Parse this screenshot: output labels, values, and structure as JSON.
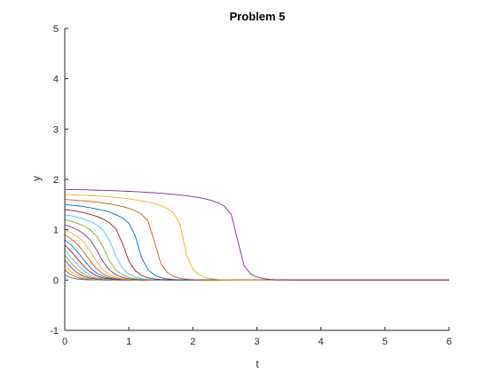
{
  "chart_data": {
    "type": "line",
    "title": "Problem 5",
    "xlabel": "t",
    "ylabel": "y",
    "xlim": [
      0,
      6
    ],
    "ylim": [
      -1,
      5
    ],
    "xticks": [
      "0",
      "1",
      "2",
      "3",
      "4",
      "5",
      "6"
    ],
    "yticks": [
      "-1",
      "0",
      "1",
      "2",
      "3",
      "4",
      "5"
    ],
    "grid": false,
    "legend": "none",
    "t": [
      0,
      0.1,
      0.2,
      0.3,
      0.4,
      0.5,
      0.6,
      0.7,
      0.8,
      0.9,
      1,
      1.1,
      1.2,
      1.3,
      1.4,
      1.5,
      1.6,
      1.7,
      1.8,
      1.9,
      2,
      2.1,
      2.2,
      2.3,
      2.4,
      2.5,
      2.6,
      2.7,
      2.8,
      2.9,
      3,
      3.1,
      3.2,
      3.3,
      3.4,
      3.5,
      3.6,
      3.7,
      3.8,
      3.9,
      4,
      4.1,
      4.2,
      4.3,
      4.4,
      4.5,
      4.6,
      4.7,
      4.8,
      4.9,
      5,
      5.1,
      5.2,
      5.3,
      5.4,
      5.5,
      5.6,
      5.7,
      5.8,
      5.9,
      6
    ],
    "series": [
      {
        "color": "#0072BD",
        "values": [
          0.1,
          0.046,
          0.021,
          0.009,
          0.004,
          0.002,
          0.001,
          0,
          0,
          0,
          0,
          0,
          0,
          0,
          0,
          0,
          0,
          0,
          0,
          0,
          0,
          0,
          0,
          0,
          0,
          0,
          0,
          0,
          0,
          0,
          0,
          0,
          0,
          0,
          0,
          0,
          0,
          0,
          0,
          0,
          0,
          0,
          0,
          0,
          0,
          0,
          0,
          0,
          0,
          0,
          0,
          0,
          0,
          0,
          0,
          0,
          0,
          0,
          0,
          0,
          0
        ]
      },
      {
        "color": "#D95319",
        "values": [
          0.2,
          0.102,
          0.05,
          0.024,
          0.012,
          0.006,
          0.003,
          0.001,
          0.001,
          0,
          0,
          0,
          0,
          0,
          0,
          0,
          0,
          0,
          0,
          0,
          0,
          0,
          0,
          0,
          0,
          0,
          0,
          0,
          0,
          0,
          0,
          0,
          0,
          0,
          0,
          0,
          0,
          0,
          0,
          0,
          0,
          0,
          0,
          0,
          0,
          0,
          0,
          0,
          0,
          0,
          0,
          0,
          0,
          0,
          0,
          0,
          0,
          0,
          0,
          0,
          0
        ]
      },
      {
        "color": "#EDB120",
        "values": [
          0.3,
          0.167,
          0.087,
          0.044,
          0.022,
          0.011,
          0.005,
          0.003,
          0.001,
          0.001,
          0,
          0,
          0,
          0,
          0,
          0,
          0,
          0,
          0,
          0,
          0,
          0,
          0,
          0,
          0,
          0,
          0,
          0,
          0,
          0,
          0,
          0,
          0,
          0,
          0,
          0,
          0,
          0,
          0,
          0,
          0,
          0,
          0,
          0,
          0,
          0,
          0,
          0,
          0,
          0,
          0,
          0,
          0,
          0,
          0,
          0,
          0,
          0,
          0,
          0,
          0
        ]
      },
      {
        "color": "#7E2F8E",
        "values": [
          0.4,
          0.245,
          0.137,
          0.072,
          0.037,
          0.019,
          0.009,
          0.005,
          0.002,
          0.001,
          0.001,
          0,
          0,
          0,
          0,
          0,
          0,
          0,
          0,
          0,
          0,
          0,
          0,
          0,
          0,
          0,
          0,
          0,
          0,
          0,
          0,
          0,
          0,
          0,
          0,
          0,
          0,
          0,
          0,
          0,
          0,
          0,
          0,
          0,
          0,
          0,
          0,
          0,
          0,
          0,
          0,
          0,
          0,
          0,
          0,
          0,
          0,
          0,
          0,
          0,
          0
        ]
      },
      {
        "color": "#77AC30",
        "values": [
          0.5,
          0.338,
          0.206,
          0.114,
          0.06,
          0.031,
          0.016,
          0.008,
          0.004,
          0.002,
          0.001,
          0,
          0,
          0,
          0,
          0,
          0,
          0,
          0,
          0,
          0,
          0,
          0,
          0,
          0,
          0,
          0,
          0,
          0,
          0,
          0,
          0,
          0,
          0,
          0,
          0,
          0,
          0,
          0,
          0,
          0,
          0,
          0,
          0,
          0,
          0,
          0,
          0,
          0,
          0,
          0,
          0,
          0,
          0,
          0,
          0,
          0,
          0,
          0,
          0,
          0
        ]
      },
      {
        "color": "#4DBEEE",
        "values": [
          0.6,
          0.447,
          0.302,
          0.179,
          0.098,
          0.051,
          0.026,
          0.013,
          0.007,
          0.003,
          0.002,
          0.001,
          0,
          0,
          0,
          0,
          0,
          0,
          0,
          0,
          0,
          0,
          0,
          0,
          0,
          0,
          0,
          0,
          0,
          0,
          0,
          0,
          0,
          0,
          0,
          0,
          0,
          0,
          0,
          0,
          0,
          0,
          0,
          0,
          0,
          0,
          0,
          0,
          0,
          0,
          0,
          0,
          0,
          0,
          0,
          0,
          0,
          0,
          0,
          0,
          0
        ]
      },
      {
        "color": "#A2142F",
        "values": [
          0.7,
          0.57,
          0.42,
          0.267,
          0.155,
          0.083,
          0.043,
          0.022,
          0.011,
          0.006,
          0.003,
          0.001,
          0.001,
          0,
          0,
          0,
          0,
          0,
          0,
          0,
          0,
          0,
          0,
          0,
          0,
          0,
          0,
          0,
          0,
          0,
          0,
          0,
          0,
          0,
          0,
          0,
          0,
          0,
          0,
          0,
          0,
          0,
          0,
          0,
          0,
          0,
          0,
          0,
          0,
          0,
          0,
          0,
          0,
          0,
          0,
          0,
          0,
          0,
          0,
          0,
          0
        ]
      },
      {
        "color": "#0072BD",
        "values": [
          0.8,
          0.695,
          0.557,
          0.395,
          0.242,
          0.136,
          0.072,
          0.037,
          0.019,
          0.01,
          0.005,
          0.002,
          0.001,
          0.001,
          0,
          0,
          0,
          0,
          0,
          0,
          0,
          0,
          0,
          0,
          0,
          0,
          0,
          0,
          0,
          0,
          0,
          0,
          0,
          0,
          0,
          0,
          0,
          0,
          0,
          0,
          0,
          0,
          0,
          0,
          0,
          0,
          0,
          0,
          0,
          0,
          0,
          0,
          0,
          0,
          0,
          0,
          0,
          0,
          0,
          0,
          0
        ]
      },
      {
        "color": "#D95319",
        "values": [
          0.9,
          0.818,
          0.706,
          0.553,
          0.373,
          0.219,
          0.119,
          0.062,
          0.032,
          0.016,
          0.008,
          0.004,
          0.002,
          0.001,
          0.001,
          0,
          0,
          0,
          0,
          0,
          0,
          0,
          0,
          0,
          0,
          0,
          0,
          0,
          0,
          0,
          0,
          0,
          0,
          0,
          0,
          0,
          0,
          0,
          0,
          0,
          0,
          0,
          0,
          0,
          0,
          0,
          0,
          0,
          0,
          0,
          0,
          0,
          0,
          0,
          0,
          0,
          0,
          0,
          0,
          0,
          0
        ]
      },
      {
        "color": "#EDB120",
        "values": [
          1,
          0.94,
          0.86,
          0.746,
          0.568,
          0.36,
          0.202,
          0.107,
          0.055,
          0.028,
          0.014,
          0.007,
          0.004,
          0.002,
          0.001,
          0,
          0,
          0,
          0,
          0,
          0,
          0,
          0,
          0,
          0,
          0,
          0,
          0,
          0,
          0,
          0,
          0,
          0,
          0,
          0,
          0,
          0,
          0,
          0,
          0,
          0,
          0,
          0,
          0,
          0,
          0,
          0,
          0,
          0,
          0,
          0,
          0,
          0,
          0,
          0,
          0,
          0,
          0,
          0,
          0,
          0
        ]
      },
      {
        "color": "#7E2F8E",
        "values": [
          1.1,
          1.055,
          0.996,
          0.917,
          0.793,
          0.592,
          0.36,
          0.197,
          0.103,
          0.053,
          0.027,
          0.014,
          0.007,
          0.003,
          0.002,
          0.001,
          0,
          0,
          0,
          0,
          0,
          0,
          0,
          0,
          0,
          0,
          0,
          0,
          0,
          0,
          0,
          0,
          0,
          0,
          0,
          0,
          0,
          0,
          0,
          0,
          0,
          0,
          0,
          0,
          0,
          0,
          0,
          0,
          0,
          0,
          0,
          0,
          0,
          0,
          0,
          0,
          0,
          0,
          0,
          0,
          0
        ]
      },
      {
        "color": "#77AC30",
        "values": [
          1.2,
          1.168,
          1.126,
          1.071,
          0.996,
          0.874,
          0.648,
          0.379,
          0.201,
          0.103,
          0.052,
          0.027,
          0.013,
          0.007,
          0.003,
          0.002,
          0.001,
          0,
          0,
          0,
          0,
          0,
          0,
          0,
          0,
          0,
          0,
          0,
          0,
          0,
          0,
          0,
          0,
          0,
          0,
          0,
          0,
          0,
          0,
          0,
          0,
          0,
          0,
          0,
          0,
          0,
          0,
          0,
          0,
          0,
          0,
          0,
          0,
          0,
          0,
          0,
          0,
          0,
          0,
          0,
          0
        ]
      },
      {
        "color": "#4DBEEE",
        "values": [
          1.3,
          1.277,
          1.247,
          1.21,
          1.161,
          1.094,
          0.99,
          0.784,
          0.466,
          0.238,
          0.119,
          0.059,
          0.03,
          0.015,
          0.007,
          0.004,
          0.002,
          0.001,
          0,
          0,
          0,
          0,
          0,
          0,
          0,
          0,
          0,
          0,
          0,
          0,
          0,
          0,
          0,
          0,
          0,
          0,
          0,
          0,
          0,
          0,
          0,
          0,
          0,
          0,
          0,
          0,
          0,
          0,
          0,
          0,
          0,
          0,
          0,
          0,
          0,
          0,
          0,
          0,
          0,
          0,
          0
        ]
      },
      {
        "color": "#A2142F",
        "values": [
          1.4,
          1.384,
          1.363,
          1.337,
          1.305,
          1.264,
          1.211,
          1.137,
          1.012,
          0.731,
          0.379,
          0.186,
          0.092,
          0.045,
          0.023,
          0.011,
          0.006,
          0.003,
          0.001,
          0.001,
          0,
          0,
          0,
          0,
          0,
          0,
          0,
          0,
          0,
          0,
          0,
          0,
          0,
          0,
          0,
          0,
          0,
          0,
          0,
          0,
          0,
          0,
          0,
          0,
          0,
          0,
          0,
          0,
          0,
          0,
          0,
          0,
          0,
          0,
          0,
          0,
          0,
          0,
          0,
          0,
          0
        ]
      },
      {
        "color": "#0072BD",
        "values": [
          1.5,
          1.489,
          1.475,
          1.458,
          1.437,
          1.413,
          1.384,
          1.347,
          1.3,
          1.235,
          1.131,
          0.877,
          0.438,
          0.203,
          0.098,
          0.048,
          0.024,
          0.012,
          0.006,
          0.003,
          0.001,
          0.001,
          0,
          0,
          0,
          0,
          0,
          0,
          0,
          0,
          0,
          0,
          0,
          0,
          0,
          0,
          0,
          0,
          0,
          0,
          0,
          0,
          0,
          0,
          0,
          0,
          0,
          0,
          0,
          0,
          0,
          0,
          0,
          0,
          0,
          0,
          0,
          0,
          0,
          0,
          0
        ]
      },
      {
        "color": "#D95319",
        "values": [
          1.6,
          1.593,
          1.585,
          1.575,
          1.563,
          1.549,
          1.532,
          1.513,
          1.49,
          1.462,
          1.426,
          1.378,
          1.307,
          1.171,
          0.758,
          0.327,
          0.152,
          0.073,
          0.036,
          0.018,
          0.009,
          0.004,
          0.002,
          0.001,
          0.001,
          0,
          0,
          0,
          0,
          0,
          0,
          0,
          0,
          0,
          0,
          0,
          0,
          0,
          0,
          0,
          0,
          0,
          0,
          0,
          0,
          0,
          0,
          0,
          0,
          0,
          0,
          0,
          0,
          0,
          0,
          0,
          0,
          0,
          0,
          0,
          0
        ]
      },
      {
        "color": "#EDB120",
        "values": [
          1.7,
          1.696,
          1.691,
          1.685,
          1.678,
          1.671,
          1.662,
          1.652,
          1.641,
          1.628,
          1.613,
          1.596,
          1.576,
          1.552,
          1.521,
          1.481,
          1.424,
          1.33,
          1.107,
          0.508,
          0.213,
          0.099,
          0.048,
          0.024,
          0.012,
          0.006,
          0.003,
          0.001,
          0.001,
          0,
          0,
          0,
          0,
          0,
          0,
          0,
          0,
          0,
          0,
          0,
          0,
          0,
          0,
          0,
          0,
          0,
          0,
          0,
          0,
          0,
          0,
          0,
          0,
          0,
          0,
          0,
          0,
          0,
          0,
          0,
          0
        ]
      },
      {
        "color": "#7E2F8E",
        "values": [
          1.8,
          1.798,
          1.796,
          1.793,
          1.79,
          1.786,
          1.782,
          1.778,
          1.773,
          1.768,
          1.762,
          1.756,
          1.749,
          1.742,
          1.734,
          1.725,
          1.715,
          1.703,
          1.69,
          1.675,
          1.657,
          1.637,
          1.611,
          1.578,
          1.532,
          1.459,
          1.3,
          0.784,
          0.284,
          0.124,
          0.059,
          0.029,
          0.014,
          0.007,
          0.004,
          0.002,
          0.001,
          0,
          0,
          0,
          0,
          0,
          0,
          0,
          0,
          0,
          0,
          0,
          0,
          0,
          0,
          0,
          0,
          0,
          0,
          0,
          0,
          0,
          0,
          0,
          0
        ]
      }
    ]
  }
}
